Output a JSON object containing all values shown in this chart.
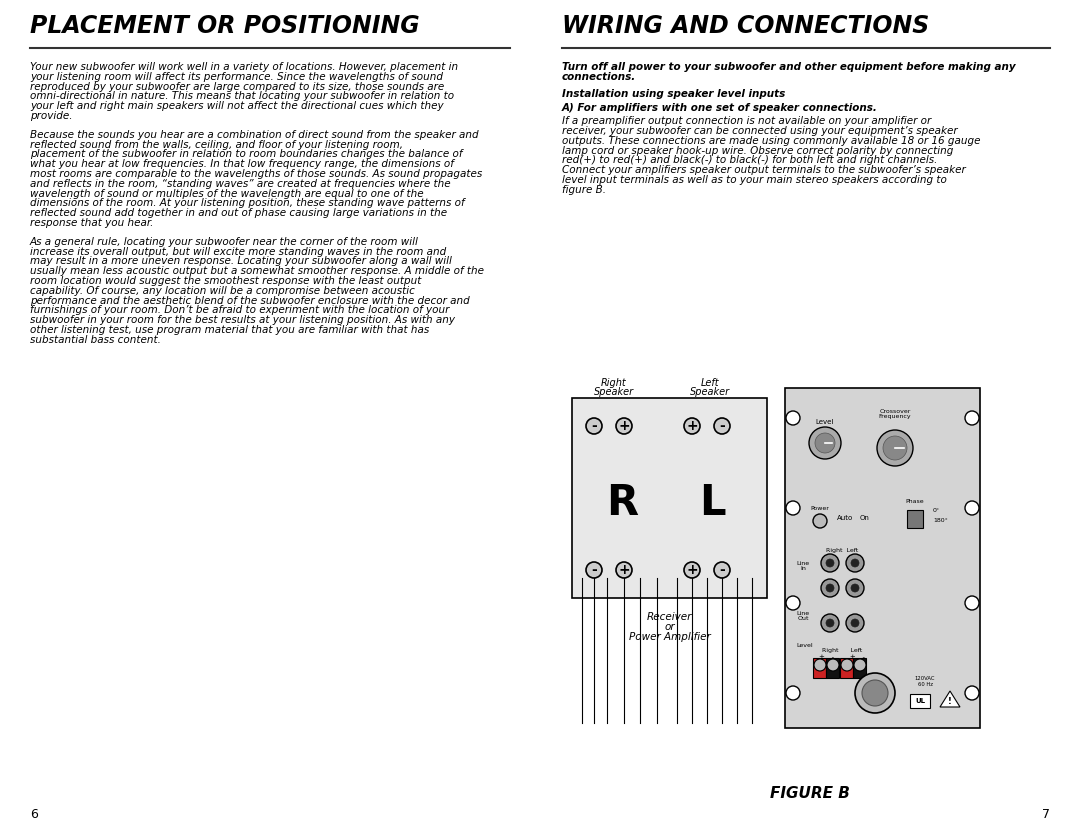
{
  "bg_color": "#ffffff",
  "left_title": "PLACEMENT OR POSITIONING",
  "right_title": "WIRING AND CONNECTIONS",
  "left_para1": "Your new subwoofer will work well in a variety of locations. However, placement in your listening room will affect its performance.  Since the wavelengths of sound reproduced by your subwoofer are large compared to its size, those sounds are omni-directional in nature.  This means that locating your subwoofer in relation to your left and right main speakers will not affect the directional cues which they provide.",
  "left_para2": "Because the sounds you hear are a combination of direct sound from the speaker and reflected sound from the walls, ceiling, and floor of your listening room, placement of the subwoofer in relation to room boundaries changes the balance of what you hear at low frequencies.  In that low frequency range, the dimensions of most rooms are comparable to the wavelengths of those sounds. As sound propagates and reflects in the room, “standing waves” are created at frequencies where the wavelength of sound or multiples of the wavelength are equal to one of the dimensions of the room.  At your listening position, these standing wave patterns of reflected sound add together in and out of phase causing large variations in the response that you hear.",
  "left_para3": "As a general rule, locating your subwoofer near the corner of the room will increase its overall output, but will excite more standing waves in the room and may result in a more uneven response.  Locating your subwoofer along a wall will usually mean less acoustic output but a somewhat smoother response.  A middle of the room location would suggest the smoothest response with the least output capability.  Of course, any location will be a compromise between acoustic performance and the aesthetic blend of the subwoofer enclosure with the decor and furnishings of your room.  Don’t be afraid to experiment with the location of your subwoofer in your room for the best results at your listening position.  As with any other listening test, use program material that you are familiar with that has substantial bass content.",
  "right_bold_para": "Turn off all power to your subwoofer and other equipment before making any connections.",
  "right_subhead": "Installation using speaker level inputs",
  "right_bold_subhead2": "A) For amplifiers with one set of speaker connections.",
  "right_para2": "If a preamplifier output connection is not available on your amplifier or receiver, your subwoofer can be connected using your equipment’s speaker outputs. These connections are made using commonly available 18 or 16 gauge lamp cord or speaker hook-up wire.  Observe correct polarity by connecting red(+) to red(+) and black(-) to black(-) for both left and right channels. Connect your amplifiers speaker output terminals to the subwoofer’s speaker level input terminals as well as to your main stereo speakers according to figure B.",
  "figure_label": "FIGURE B",
  "page_left": "6",
  "page_right": "7"
}
